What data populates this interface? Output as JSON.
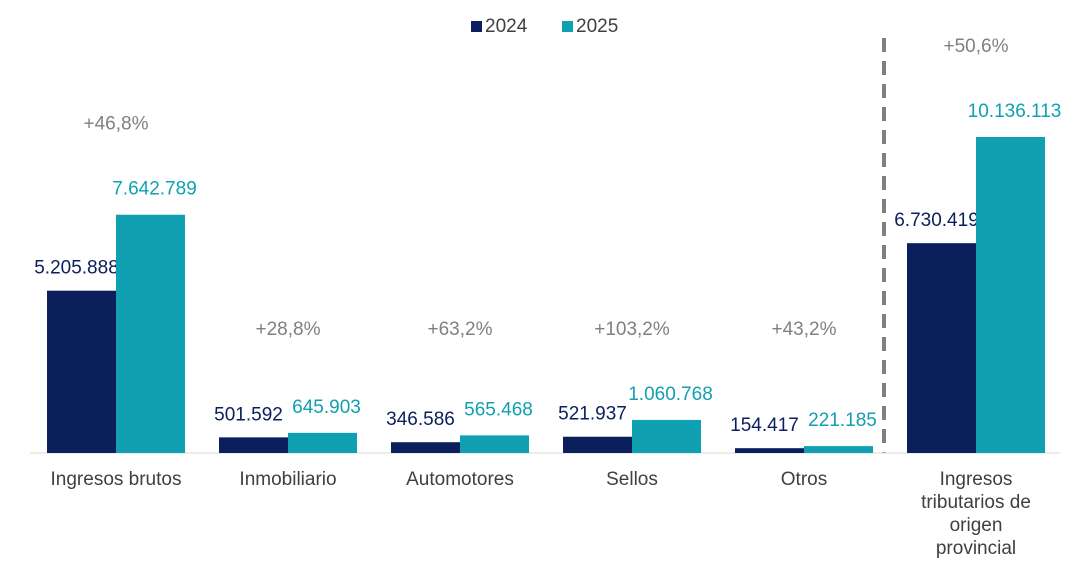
{
  "chart_data": {
    "type": "bar",
    "categories": [
      "Ingresos brutos",
      "Inmobiliario",
      "Automotores",
      "Sellos",
      "Otros",
      "Ingresos tributarios de origen provincial"
    ],
    "series": [
      {
        "name": "2024",
        "color": "#0b1f5c",
        "values": [
          5205888,
          501592,
          346586,
          521937,
          154417,
          6730419
        ],
        "value_labels": [
          "5.205.888",
          "501.592",
          "346.586",
          "521.937",
          "154.417",
          "6.730.419"
        ]
      },
      {
        "name": "2025",
        "color": "#10a0b2",
        "values": [
          7642789,
          645903,
          565468,
          1060768,
          221185,
          10136113
        ],
        "value_labels": [
          "7.642.789",
          "645.903",
          "565.468",
          "1.060.768",
          "221.185",
          "10.136.113"
        ]
      }
    ],
    "annotations": [
      "+46,8%",
      "+28,8%",
      "+63,2%",
      "+103,2%",
      "+43,2%",
      "+50,6%"
    ],
    "legend": "top"
  }
}
